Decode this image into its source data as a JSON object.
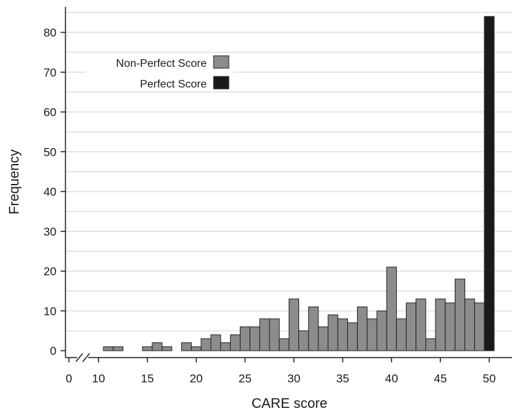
{
  "chart_data": {
    "type": "bar",
    "xlabel": "CARE score",
    "ylabel": "Frequency",
    "xlim": [
      9,
      51
    ],
    "ylim": [
      0,
      85
    ],
    "x_ticks": [
      0,
      10,
      15,
      20,
      25,
      30,
      35,
      40,
      45,
      50
    ],
    "y_ticks": [
      0,
      10,
      20,
      30,
      40,
      50,
      60,
      70,
      80
    ],
    "axis_break": "between 0 and 10 on the x axis",
    "grid": "horizontal",
    "legend_position": "top-left",
    "series": [
      {
        "name": "Non-Perfect Score",
        "color": "#8c8c8c",
        "points": [
          {
            "x": 11,
            "y": 1
          },
          {
            "x": 12,
            "y": 1
          },
          {
            "x": 15,
            "y": 1
          },
          {
            "x": 16,
            "y": 2
          },
          {
            "x": 17,
            "y": 1
          },
          {
            "x": 19,
            "y": 2
          },
          {
            "x": 20,
            "y": 1
          },
          {
            "x": 21,
            "y": 3
          },
          {
            "x": 22,
            "y": 4
          },
          {
            "x": 23,
            "y": 2
          },
          {
            "x": 24,
            "y": 4
          },
          {
            "x": 25,
            "y": 6
          },
          {
            "x": 26,
            "y": 6
          },
          {
            "x": 27,
            "y": 8
          },
          {
            "x": 28,
            "y": 8
          },
          {
            "x": 29,
            "y": 3
          },
          {
            "x": 30,
            "y": 13
          },
          {
            "x": 31,
            "y": 5
          },
          {
            "x": 32,
            "y": 11
          },
          {
            "x": 33,
            "y": 6
          },
          {
            "x": 34,
            "y": 9
          },
          {
            "x": 35,
            "y": 8
          },
          {
            "x": 36,
            "y": 7
          },
          {
            "x": 37,
            "y": 11
          },
          {
            "x": 38,
            "y": 8
          },
          {
            "x": 39,
            "y": 10
          },
          {
            "x": 40,
            "y": 21
          },
          {
            "x": 41,
            "y": 8
          },
          {
            "x": 42,
            "y": 12
          },
          {
            "x": 43,
            "y": 13
          },
          {
            "x": 44,
            "y": 3
          },
          {
            "x": 45,
            "y": 13
          },
          {
            "x": 46,
            "y": 12
          },
          {
            "x": 47,
            "y": 18
          },
          {
            "x": 48,
            "y": 13
          },
          {
            "x": 49,
            "y": 12
          }
        ]
      },
      {
        "name": "Perfect Score",
        "color": "#1a1a1a",
        "points": [
          {
            "x": 50,
            "y": 84
          }
        ]
      }
    ]
  }
}
